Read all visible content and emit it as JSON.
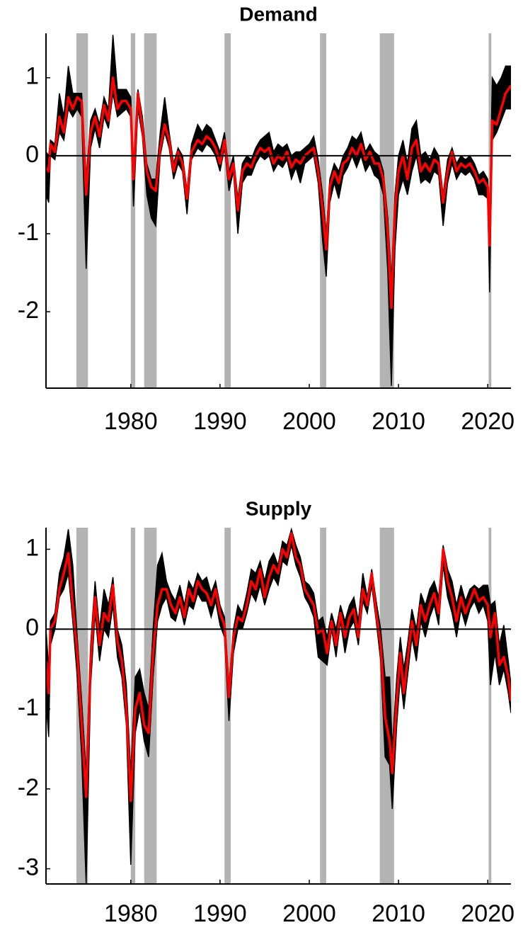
{
  "chart_data": [
    {
      "type": "line",
      "title": "Demand",
      "xlim": [
        1970.5,
        2022.6
      ],
      "ylim": [
        -2.98,
        1.57
      ],
      "xticks": [
        1980,
        1990,
        2000,
        2010,
        2020
      ],
      "yticks": [
        -2,
        -1,
        0,
        1
      ],
      "hline": 0,
      "shade_color": "#b3b3b3",
      "shaded": [
        [
          1973.9,
          1975.2
        ],
        [
          1980.0,
          1980.5
        ],
        [
          1981.5,
          1982.9
        ],
        [
          1990.5,
          1991.2
        ],
        [
          2001.2,
          2001.9
        ],
        [
          2007.9,
          2009.5
        ],
        [
          2020.1,
          2020.4
        ]
      ],
      "x": [
        1970.5,
        1970.8,
        1971,
        1971.5,
        1972,
        1972.5,
        1973,
        1973.5,
        1974,
        1974.5,
        1975,
        1975.5,
        1976,
        1976.5,
        1977,
        1977.5,
        1978,
        1978.5,
        1979,
        1979.5,
        1980,
        1980.3,
        1980.8,
        1981.3,
        1981.8,
        1982.3,
        1982.8,
        1983.3,
        1983.8,
        1984.3,
        1984.8,
        1985.3,
        1985.8,
        1986.3,
        1986.8,
        1987.5,
        1988,
        1988.5,
        1989,
        1989.5,
        1990,
        1990.5,
        1991,
        1991.5,
        1992,
        1992.5,
        1993,
        1993.5,
        1994,
        1994.5,
        1995,
        1995.5,
        1996,
        1996.5,
        1997,
        1997.5,
        1998,
        1998.5,
        1999,
        1999.5,
        2000,
        2000.5,
        2001,
        2001.5,
        2001.9,
        2002.3,
        2002.8,
        2003.3,
        2003.8,
        2004.3,
        2004.8,
        2005.3,
        2005.8,
        2006.3,
        2006.8,
        2007.3,
        2007.8,
        2008.3,
        2008.8,
        2009.2,
        2009.6,
        2010,
        2010.5,
        2011,
        2011.5,
        2012,
        2012.5,
        2013,
        2013.5,
        2014,
        2014.5,
        2015,
        2015.5,
        2016,
        2016.5,
        2017,
        2017.5,
        2018,
        2018.5,
        2019,
        2019.5,
        2020,
        2020.2,
        2020.5,
        2021,
        2021.5,
        2022,
        2022.6
      ],
      "series": [
        {
          "type": "band",
          "color": "#000000",
          "lower": [
            -0.5,
            -0.6,
            0,
            -0.05,
            0.3,
            0.2,
            0.6,
            0.5,
            0.6,
            0.5,
            -1.45,
            0.1,
            0.35,
            0.1,
            0.5,
            0.35,
            0.8,
            0.5,
            0.55,
            0.6,
            0.5,
            -0.65,
            0.6,
            0.25,
            -0.5,
            -0.8,
            -0.9,
            0,
            0.3,
            0.1,
            -0.3,
            -0.1,
            -0.2,
            -0.75,
            -0.05,
            0.1,
            0.05,
            0.15,
            0.1,
            0,
            -0.2,
            0.1,
            -0.45,
            -0.2,
            -1,
            -0.35,
            -0.25,
            -0.25,
            -0.1,
            0,
            -0.05,
            0,
            -0.2,
            -0.1,
            -0.15,
            -0.05,
            -0.3,
            -0.15,
            -0.35,
            -0.1,
            -0.05,
            0,
            -0.35,
            -1.1,
            -1.55,
            -0.6,
            -0.35,
            -0.55,
            -0.25,
            -0.15,
            0,
            -0.15,
            0,
            -0.2,
            -0.1,
            -0.25,
            -0.3,
            -0.5,
            -1.5,
            -2.95,
            -1.2,
            -0.5,
            -0.3,
            -0.5,
            -0.2,
            0,
            -0.35,
            -0.3,
            -0.35,
            -0.2,
            -0.25,
            -0.9,
            -0.35,
            -0.1,
            -0.3,
            -0.2,
            -0.25,
            -0.2,
            -0.3,
            -0.5,
            -0.5,
            -0.55,
            -1.75,
            0.2,
            0.3,
            0.45,
            0.6,
            0.6
          ],
          "upper": [
            0.05,
            0,
            0.2,
            0.15,
            0.8,
            0.5,
            1.15,
            0.8,
            0.8,
            0.8,
            -0.3,
            0.45,
            0.6,
            0.4,
            0.75,
            0.6,
            1.55,
            0.85,
            0.85,
            0.85,
            0.75,
            -0.2,
            0.85,
            0.5,
            -0.1,
            -0.3,
            -0.3,
            0.3,
            0.75,
            0.3,
            -0.1,
            0.1,
            0,
            -0.45,
            0.15,
            0.4,
            0.3,
            0.4,
            0.35,
            0.2,
            0.05,
            0.3,
            -0.2,
            0,
            -0.55,
            -0.1,
            0,
            -0.05,
            0.1,
            0.2,
            0.25,
            0.3,
            0.05,
            0.15,
            0.1,
            0.15,
            0,
            0.05,
            0.05,
            0.1,
            0.15,
            0.25,
            -0.05,
            -0.5,
            -1,
            -0.3,
            -0.1,
            -0.2,
            0,
            0.1,
            0.25,
            0.2,
            0.3,
            0.05,
            0.15,
            0.05,
            0,
            -0.2,
            -0.8,
            -1.6,
            -0.5,
            0,
            0.2,
            -0.1,
            0.35,
            0.45,
            0,
            0.05,
            -0.05,
            0.1,
            0,
            -0.5,
            -0.05,
            0.1,
            -0.1,
            0,
            -0.05,
            0,
            -0.1,
            -0.25,
            -0.2,
            -0.3,
            -1,
            1,
            0.9,
            1,
            1.15,
            1.15
          ]
        },
        {
          "type": "line",
          "color": "#ff0000",
          "values": [
            -0.15,
            -0.2,
            0.15,
            0.05,
            0.5,
            0.3,
            0.75,
            0.6,
            0.75,
            0.7,
            -0.5,
            0.3,
            0.5,
            0.25,
            0.65,
            0.45,
            1,
            0.6,
            0.7,
            0.7,
            0.6,
            -0.3,
            0.8,
            0.35,
            -0.2,
            -0.4,
            -0.45,
            0.1,
            0.4,
            0.2,
            -0.2,
            0.05,
            -0.1,
            -0.55,
            0.05,
            0.2,
            0.15,
            0.25,
            0.2,
            0.1,
            -0.1,
            0.2,
            -0.3,
            -0.1,
            -0.7,
            -0.2,
            -0.1,
            -0.15,
            0,
            0.1,
            0.05,
            0.1,
            -0.1,
            0,
            -0.05,
            0.05,
            -0.15,
            -0.05,
            -0.1,
            0,
            0.05,
            0.1,
            -0.2,
            -0.7,
            -1.2,
            -0.4,
            -0.2,
            -0.35,
            -0.1,
            -0.05,
            0.1,
            0,
            0.15,
            -0.05,
            0.05,
            -0.1,
            -0.1,
            -0.3,
            -1,
            -1.95,
            -0.7,
            -0.2,
            0,
            -0.3,
            0.1,
            0.2,
            -0.2,
            -0.1,
            -0.2,
            -0.05,
            -0.1,
            -0.6,
            -0.2,
            0.05,
            -0.2,
            -0.1,
            -0.15,
            -0.1,
            -0.2,
            -0.35,
            -0.3,
            -0.4,
            -1.15,
            0.45,
            0.4,
            0.6,
            0.8,
            0.9
          ]
        }
      ]
    },
    {
      "type": "line",
      "title": "Supply",
      "xlim": [
        1970.5,
        2022.6
      ],
      "ylim": [
        -3.19,
        1.27
      ],
      "xticks": [
        1980,
        1990,
        2000,
        2010,
        2020
      ],
      "yticks": [
        -3,
        -2,
        -1,
        0,
        1
      ],
      "hline": 0,
      "shade_color": "#b3b3b3",
      "shaded": [
        [
          1973.9,
          1975.2
        ],
        [
          1980.0,
          1980.5
        ],
        [
          1981.5,
          1982.9
        ],
        [
          1990.5,
          1991.2
        ],
        [
          2001.2,
          2001.9
        ],
        [
          2007.9,
          2009.5
        ],
        [
          2020.1,
          2020.4
        ]
      ],
      "x": [
        1970.5,
        1970.8,
        1971,
        1971.5,
        1972,
        1972.5,
        1973,
        1973.5,
        1974,
        1974.5,
        1975,
        1975.5,
        1976,
        1976.5,
        1977,
        1977.5,
        1978,
        1978.5,
        1979,
        1979.5,
        1980,
        1980.5,
        1981,
        1981.5,
        1982,
        1982.5,
        1983,
        1983.5,
        1984,
        1984.5,
        1985,
        1985.5,
        1986,
        1986.5,
        1987,
        1987.5,
        1988,
        1988.5,
        1989,
        1989.5,
        1990,
        1990.5,
        1991,
        1991.5,
        1992,
        1992.5,
        1993,
        1993.5,
        1994,
        1994.5,
        1995,
        1995.5,
        1996,
        1996.5,
        1997,
        1997.5,
        1998,
        1998.5,
        1999,
        1999.5,
        2000,
        2000.5,
        2001,
        2001.5,
        2002,
        2002.5,
        2003,
        2003.5,
        2004,
        2004.5,
        2005,
        2005.5,
        2006,
        2006.5,
        2007,
        2007.5,
        2008,
        2008.5,
        2009,
        2009.3,
        2009.8,
        2010.2,
        2010.6,
        2011,
        2011.5,
        2012,
        2012.5,
        2013,
        2013.5,
        2014,
        2014.5,
        2015,
        2015.5,
        2016,
        2016.5,
        2017,
        2017.5,
        2018,
        2018.5,
        2019,
        2019.5,
        2020,
        2020.3,
        2020.8,
        2021.3,
        2021.8,
        2022.3,
        2022.6
      ],
      "series": [
        {
          "type": "band",
          "color": "#000000",
          "lower": [
            -0.9,
            -1.35,
            -0.2,
            0,
            0.4,
            0.5,
            0.7,
            0.1,
            -0.6,
            -1.6,
            -3.2,
            -0.7,
            0.2,
            -0.4,
            0,
            -0.1,
            0.3,
            -0.35,
            -0.6,
            -1.2,
            -2.95,
            -1.3,
            -1,
            -1.4,
            -1.6,
            -0.6,
            0.1,
            0.3,
            0.4,
            0.15,
            0.1,
            0.3,
            0.05,
            0.3,
            0.25,
            0.45,
            0.35,
            0.35,
            0.15,
            0.35,
            0.05,
            -0.1,
            -1.15,
            -0.3,
            0,
            0,
            0.2,
            0.45,
            0.35,
            0.55,
            0.3,
            0.5,
            0.65,
            0.55,
            0.85,
            0.8,
            1.05,
            0.8,
            0.65,
            0.4,
            0.3,
            0.15,
            -0.35,
            -0.4,
            -0.45,
            0,
            -0.35,
            0.1,
            -0.3,
            0,
            0.1,
            -0.2,
            0.35,
            0.2,
            0.55,
            0.1,
            -0.4,
            -1.6,
            -1.7,
            -2.25,
            -1.2,
            -0.6,
            -1,
            -0.6,
            -0.1,
            -0.4,
            0.1,
            -0.1,
            0.15,
            0.3,
            0.05,
            0.8,
            0.4,
            0.2,
            -0.1,
            0.25,
            0.05,
            0.25,
            0.35,
            0.2,
            0.3,
            0.1,
            -0.7,
            -0.3,
            -0.7,
            -0.5,
            -0.8,
            -1.05
          ],
          "upper": [
            0,
            -0.5,
            0.1,
            0.2,
            0.7,
            0.9,
            1.25,
            0.8,
            -0.1,
            -0.9,
            -1.8,
            -0.2,
            0.6,
            0,
            0.5,
            0.3,
            0.65,
            0,
            -0.2,
            -0.7,
            -1.8,
            -0.6,
            -0.5,
            -0.8,
            -1,
            0,
            0.8,
            0.95,
            0.6,
            0.45,
            0.35,
            0.55,
            0.3,
            0.6,
            0.5,
            0.7,
            0.6,
            0.65,
            0.45,
            0.6,
            0.3,
            0.15,
            -0.7,
            0,
            0.3,
            0.2,
            0.45,
            0.75,
            0.7,
            0.85,
            0.6,
            0.85,
            0.95,
            0.8,
            1.1,
            1.05,
            1.25,
            1.05,
            0.9,
            0.6,
            0.55,
            0.45,
            0.1,
            0.15,
            -0.1,
            0.2,
            0,
            0.3,
            0.1,
            0.3,
            0.4,
            0.1,
            0.7,
            0.4,
            0.75,
            0.35,
            0,
            -0.6,
            -0.6,
            -1.5,
            -0.6,
            -0.1,
            -0.5,
            -0.2,
            0.25,
            0,
            0.45,
            0.3,
            0.5,
            0.6,
            0.4,
            1.05,
            0.75,
            0.6,
            0.3,
            0.55,
            0.35,
            0.5,
            0.55,
            0.5,
            0.55,
            0.55,
            0.3,
            0.35,
            -0.2,
            0.05,
            -0.4,
            -0.7
          ]
        },
        {
          "type": "line",
          "color": "#ff0000",
          "values": [
            -0.4,
            -0.8,
            0,
            0.1,
            0.5,
            0.7,
            0.95,
            0.3,
            -0.3,
            -1.2,
            -2.1,
            -0.4,
            0.4,
            -0.2,
            0.2,
            0.1,
            0.55,
            -0.15,
            -0.4,
            -1,
            -2.15,
            -1,
            -0.8,
            -1.2,
            -1.3,
            -0.3,
            0.3,
            0.5,
            0.5,
            0.3,
            0.2,
            0.4,
            0.15,
            0.5,
            0.35,
            0.6,
            0.5,
            0.45,
            0.3,
            0.5,
            0.2,
            0.05,
            -0.85,
            -0.1,
            0.15,
            0.1,
            0.3,
            0.6,
            0.5,
            0.75,
            0.4,
            0.65,
            0.8,
            0.7,
            1,
            0.9,
            1.2,
            0.9,
            0.8,
            0.5,
            0.4,
            0.3,
            -0.05,
            0,
            -0.3,
            0.1,
            -0.2,
            0.2,
            -0.1,
            0.15,
            0.25,
            -0.1,
            0.5,
            0.3,
            0.7,
            0.2,
            -0.2,
            -1.1,
            -1.4,
            -1.8,
            -0.9,
            -0.3,
            -0.8,
            -0.4,
            0.1,
            -0.2,
            0.3,
            0.1,
            0.3,
            0.45,
            0.2,
            1,
            0.6,
            0.4,
            0.1,
            0.4,
            0.2,
            0.35,
            0.5,
            0.35,
            0.4,
            0.3,
            -0.1,
            0.2,
            -0.45,
            -0.35,
            -0.6,
            -0.9
          ]
        }
      ]
    }
  ]
}
